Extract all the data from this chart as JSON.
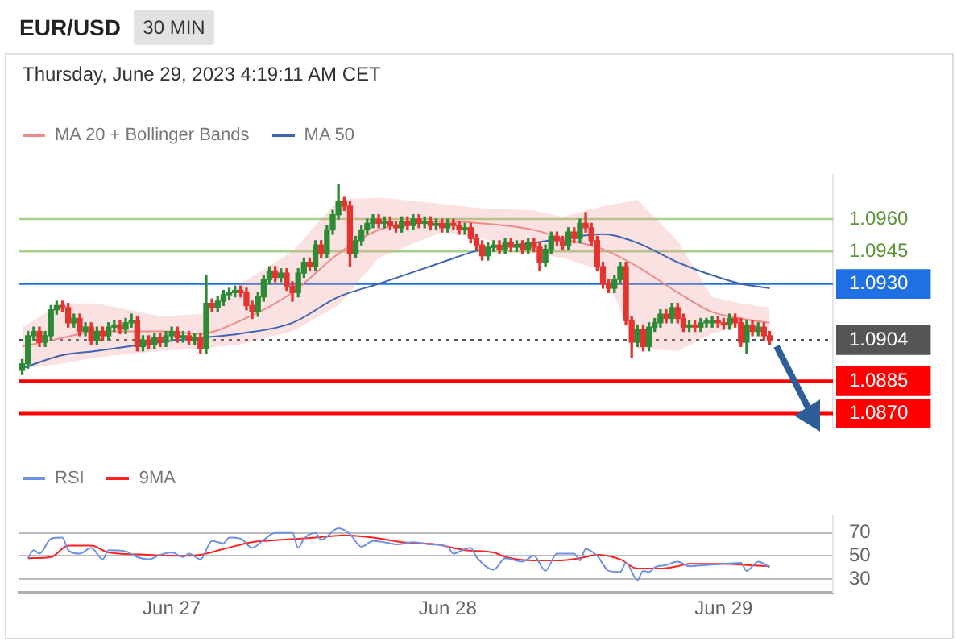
{
  "chart_data": [
    {
      "type": "candlestick",
      "title": "EUR/USD",
      "subtitle": "Thursday, June 29, 2023 4:19:11 AM CET",
      "annotations": [
        "30 MIN"
      ],
      "x": [
        "2023-06-26T11:00",
        "2023-06-26T11:30",
        "2023-06-26T12:00",
        "2023-06-26T12:30",
        "2023-06-26T13:00",
        "2023-06-26T13:30",
        "2023-06-26T14:00",
        "2023-06-26T14:30",
        "2023-06-26T15:00",
        "2023-06-26T15:30",
        "2023-06-26T16:00",
        "2023-06-26T16:30",
        "2023-06-26T17:00",
        "2023-06-26T17:30",
        "2023-06-26T18:00",
        "2023-06-26T18:30",
        "2023-06-26T19:00",
        "2023-06-26T19:30",
        "2023-06-26T20:00",
        "2023-06-26T20:30",
        "2023-06-26T21:00",
        "2023-06-26T21:30",
        "2023-06-26T22:00",
        "2023-06-26T22:30",
        "2023-06-26T23:00",
        "2023-06-26T23:30",
        "2023-06-27T00:00",
        "2023-06-27T00:30",
        "2023-06-27T01:00",
        "2023-06-27T01:30",
        "2023-06-27T02:00",
        "2023-06-27T02:30",
        "2023-06-27T03:00",
        "2023-06-27T03:30",
        "2023-06-27T04:00",
        "2023-06-27T04:30",
        "2023-06-27T05:00",
        "2023-06-27T05:30",
        "2023-06-27T06:00",
        "2023-06-27T06:30",
        "2023-06-27T07:00",
        "2023-06-27T07:30",
        "2023-06-27T08:00",
        "2023-06-27T08:30",
        "2023-06-27T09:00",
        "2023-06-27T09:30",
        "2023-06-27T10:00",
        "2023-06-27T10:30",
        "2023-06-27T11:00",
        "2023-06-27T11:30",
        "2023-06-27T12:00",
        "2023-06-27T12:30",
        "2023-06-27T13:00",
        "2023-06-27T13:30",
        "2023-06-27T14:00",
        "2023-06-27T14:30",
        "2023-06-27T15:00",
        "2023-06-27T15:30",
        "2023-06-27T16:00",
        "2023-06-27T16:30",
        "2023-06-27T17:00",
        "2023-06-27T17:30",
        "2023-06-27T18:00",
        "2023-06-27T18:30",
        "2023-06-27T19:00",
        "2023-06-27T19:30",
        "2023-06-27T20:00",
        "2023-06-27T20:30",
        "2023-06-27T21:00",
        "2023-06-27T21:30",
        "2023-06-27T22:00",
        "2023-06-27T22:30",
        "2023-06-27T23:00",
        "2023-06-27T23:30",
        "2023-06-28T00:00",
        "2023-06-28T00:30",
        "2023-06-28T01:00",
        "2023-06-28T01:30",
        "2023-06-28T02:00",
        "2023-06-28T02:30",
        "2023-06-28T03:00",
        "2023-06-28T03:30",
        "2023-06-28T04:00",
        "2023-06-28T04:30",
        "2023-06-28T05:00",
        "2023-06-28T05:30",
        "2023-06-28T06:00",
        "2023-06-28T06:30",
        "2023-06-28T07:00",
        "2023-06-28T07:30",
        "2023-06-28T08:00",
        "2023-06-28T08:30",
        "2023-06-28T09:00",
        "2023-06-28T09:30",
        "2023-06-28T10:00",
        "2023-06-28T10:30",
        "2023-06-28T11:00",
        "2023-06-28T11:30",
        "2023-06-28T12:00",
        "2023-06-28T12:30",
        "2023-06-28T13:00",
        "2023-06-28T13:30",
        "2023-06-28T14:00",
        "2023-06-28T14:30",
        "2023-06-28T15:00",
        "2023-06-28T15:30",
        "2023-06-28T16:00",
        "2023-06-28T16:30",
        "2023-06-28T17:00",
        "2023-06-28T17:30",
        "2023-06-28T18:00",
        "2023-06-28T18:30",
        "2023-06-28T19:00",
        "2023-06-28T19:30",
        "2023-06-28T20:00",
        "2023-06-28T20:30",
        "2023-06-28T21:00",
        "2023-06-28T21:30",
        "2023-06-28T22:00",
        "2023-06-28T22:30",
        "2023-06-28T23:00",
        "2023-06-28T23:30",
        "2023-06-29T00:00",
        "2023-06-29T00:30",
        "2023-06-29T01:00",
        "2023-06-29T01:30",
        "2023-06-29T02:00",
        "2023-06-29T02:30",
        "2023-06-29T03:00",
        "2023-06-29T03:30",
        "2023-06-29T04:00"
      ],
      "ohlc": [
        [
          1.089,
          1.0895,
          1.0888,
          1.0893
        ],
        [
          1.0893,
          1.0908,
          1.0891,
          1.0906
        ],
        [
          1.0906,
          1.091,
          1.0904,
          1.0908
        ],
        [
          1.0908,
          1.091,
          1.0901,
          1.0903
        ],
        [
          1.0903,
          1.0908,
          1.0901,
          1.0906
        ],
        [
          1.0906,
          1.092,
          1.0904,
          1.0918
        ],
        [
          1.0918,
          1.0922,
          1.0916,
          1.092
        ],
        [
          1.092,
          1.0922,
          1.0917,
          1.0919
        ],
        [
          1.0919,
          1.0921,
          1.091,
          1.0912
        ],
        [
          1.0912,
          1.0916,
          1.091,
          1.0914
        ],
        [
          1.0914,
          1.0916,
          1.0906,
          1.0908
        ],
        [
          1.0908,
          1.0912,
          1.0906,
          1.091
        ],
        [
          1.091,
          1.0912,
          1.0902,
          1.0904
        ],
        [
          1.0904,
          1.091,
          1.0902,
          1.0908
        ],
        [
          1.0908,
          1.091,
          1.0904,
          1.0906
        ],
        [
          1.0906,
          1.0912,
          1.0904,
          1.091
        ],
        [
          1.091,
          1.0913,
          1.0908,
          1.0911
        ],
        [
          1.0911,
          1.0913,
          1.0907,
          1.0909
        ],
        [
          1.0909,
          1.0914,
          1.0907,
          1.0912
        ],
        [
          1.0912,
          1.0916,
          1.091,
          1.0913
        ],
        [
          1.0913,
          1.0915,
          1.0899,
          1.0901
        ],
        [
          1.0901,
          1.0906,
          1.0899,
          1.0904
        ],
        [
          1.0904,
          1.0906,
          1.09,
          1.0902
        ],
        [
          1.0902,
          1.0907,
          1.09,
          1.0905
        ],
        [
          1.0905,
          1.0907,
          1.0901,
          1.0903
        ],
        [
          1.0903,
          1.0908,
          1.0901,
          1.0906
        ],
        [
          1.0906,
          1.091,
          1.0904,
          1.0908
        ],
        [
          1.0908,
          1.091,
          1.0903,
          1.0905
        ],
        [
          1.0905,
          1.0908,
          1.0903,
          1.0906
        ],
        [
          1.0906,
          1.0908,
          1.0902,
          1.0904
        ],
        [
          1.0904,
          1.0907,
          1.0902,
          1.0905
        ],
        [
          1.0905,
          1.0907,
          1.0898,
          1.09
        ],
        [
          1.09,
          1.0934,
          1.0898,
          1.0921
        ],
        [
          1.0921,
          1.0923,
          1.0917,
          1.0919
        ],
        [
          1.0919,
          1.0924,
          1.0917,
          1.0922
        ],
        [
          1.0922,
          1.0927,
          1.092,
          1.0925
        ],
        [
          1.0925,
          1.0928,
          1.0923,
          1.0926
        ],
        [
          1.0926,
          1.0929,
          1.0924,
          1.0927
        ],
        [
          1.0927,
          1.0929,
          1.0924,
          1.0926
        ],
        [
          1.0926,
          1.0928,
          1.0918,
          1.092
        ],
        [
          1.092,
          1.0922,
          1.0914,
          1.0917
        ],
        [
          1.0917,
          1.0926,
          1.0915,
          1.0924
        ],
        [
          1.0924,
          1.0934,
          1.0922,
          1.0932
        ],
        [
          1.0932,
          1.0938,
          1.093,
          1.0936
        ],
        [
          1.0936,
          1.0938,
          1.0931,
          1.0933
        ],
        [
          1.0933,
          1.0937,
          1.0931,
          1.0935
        ],
        [
          1.0935,
          1.0937,
          1.0927,
          1.0929
        ],
        [
          1.0929,
          1.0931,
          1.0922,
          1.0926
        ],
        [
          1.0926,
          1.0937,
          1.0924,
          1.0935
        ],
        [
          1.0935,
          1.0942,
          1.0933,
          1.094
        ],
        [
          1.094,
          1.0942,
          1.0936,
          1.0938
        ],
        [
          1.0938,
          1.095,
          1.0936,
          1.0948
        ],
        [
          1.0948,
          1.095,
          1.0942,
          1.0944
        ],
        [
          1.0944,
          1.0957,
          1.0942,
          1.0955
        ],
        [
          1.0955,
          1.0964,
          1.0953,
          1.0962
        ],
        [
          1.0962,
          1.0976,
          1.096,
          1.0968
        ],
        [
          1.0968,
          1.097,
          1.0964,
          1.0966
        ],
        [
          1.0966,
          1.0968,
          1.0938,
          1.0944
        ],
        [
          1.0944,
          1.0952,
          1.0942,
          1.095
        ],
        [
          1.095,
          1.0957,
          1.0948,
          1.0955
        ],
        [
          1.0955,
          1.096,
          1.0953,
          1.0958
        ],
        [
          1.0958,
          1.0962,
          1.0956,
          1.096
        ],
        [
          1.096,
          1.0962,
          1.0956,
          1.0958
        ],
        [
          1.0958,
          1.0961,
          1.0956,
          1.0959
        ],
        [
          1.0959,
          1.0961,
          1.0955,
          1.0957
        ],
        [
          1.0957,
          1.0959,
          1.0954,
          1.0956
        ],
        [
          1.0956,
          1.0961,
          1.0954,
          1.0959
        ],
        [
          1.0959,
          1.0961,
          1.0955,
          1.0957
        ],
        [
          1.0957,
          1.0962,
          1.0955,
          1.096
        ],
        [
          1.096,
          1.0962,
          1.0956,
          1.0958
        ],
        [
          1.0958,
          1.0961,
          1.0956,
          1.0959
        ],
        [
          1.0959,
          1.0961,
          1.0955,
          1.0957
        ],
        [
          1.0957,
          1.096,
          1.0955,
          1.0958
        ],
        [
          1.0958,
          1.096,
          1.0954,
          1.0956
        ],
        [
          1.0956,
          1.096,
          1.0954,
          1.0958
        ],
        [
          1.0958,
          1.096,
          1.0955,
          1.0957
        ],
        [
          1.0957,
          1.0959,
          1.0953,
          1.0955
        ],
        [
          1.0955,
          1.0958,
          1.0953,
          1.0956
        ],
        [
          1.0956,
          1.0958,
          1.0949,
          1.0951
        ],
        [
          1.0951,
          1.0953,
          1.0946,
          1.0948
        ],
        [
          1.0948,
          1.095,
          1.0941,
          1.0943
        ],
        [
          1.0943,
          1.0949,
          1.0941,
          1.0947
        ],
        [
          1.0947,
          1.095,
          1.0945,
          1.0948
        ],
        [
          1.0948,
          1.095,
          1.0944,
          1.0946
        ],
        [
          1.0946,
          1.0951,
          1.0944,
          1.0949
        ],
        [
          1.0949,
          1.0951,
          1.0945,
          1.0947
        ],
        [
          1.0947,
          1.095,
          1.0945,
          1.0948
        ],
        [
          1.0948,
          1.095,
          1.0944,
          1.0946
        ],
        [
          1.0946,
          1.0951,
          1.0944,
          1.0949
        ],
        [
          1.0949,
          1.0951,
          1.0945,
          1.0947
        ],
        [
          1.0947,
          1.0949,
          1.0936,
          1.094
        ],
        [
          1.094,
          1.0948,
          1.0938,
          1.0946
        ],
        [
          1.0946,
          1.0954,
          1.0944,
          1.0952
        ],
        [
          1.0952,
          1.0954,
          1.0948,
          1.095
        ],
        [
          1.095,
          1.0952,
          1.0946,
          1.0948
        ],
        [
          1.0948,
          1.0956,
          1.0946,
          1.0954
        ],
        [
          1.0954,
          1.0956,
          1.0949,
          1.0951
        ],
        [
          1.0951,
          1.096,
          1.0949,
          1.0958
        ],
        [
          1.0958,
          1.0963,
          1.0954,
          1.0956
        ],
        [
          1.0956,
          1.0958,
          1.0948,
          1.095
        ],
        [
          1.095,
          1.0952,
          1.0936,
          1.0938
        ],
        [
          1.0938,
          1.094,
          1.0928,
          1.093
        ],
        [
          1.093,
          1.0932,
          1.0926,
          1.0928
        ],
        [
          1.0928,
          1.0934,
          1.0926,
          1.0932
        ],
        [
          1.0932,
          1.094,
          1.093,
          1.0938
        ],
        [
          1.0938,
          1.094,
          1.0911,
          1.0913
        ],
        [
          1.0913,
          1.0915,
          1.0896,
          1.0903
        ],
        [
          1.0903,
          1.0911,
          1.0901,
          1.0909
        ],
        [
          1.0909,
          1.0911,
          1.0899,
          1.0901
        ],
        [
          1.0901,
          1.0912,
          1.0899,
          1.091
        ],
        [
          1.091,
          1.0914,
          1.0908,
          1.0912
        ],
        [
          1.0912,
          1.0918,
          1.091,
          1.0916
        ],
        [
          1.0916,
          1.0918,
          1.0912,
          1.0914
        ],
        [
          1.0914,
          1.0921,
          1.0912,
          1.0919
        ],
        [
          1.0919,
          1.0921,
          1.0912,
          1.0914
        ],
        [
          1.0914,
          1.0916,
          1.0908,
          1.091
        ],
        [
          1.091,
          1.0913,
          1.0908,
          1.0911
        ],
        [
          1.0911,
          1.0913,
          1.0908,
          1.091
        ],
        [
          1.091,
          1.0914,
          1.0908,
          1.0912
        ],
        [
          1.0912,
          1.0914,
          1.091,
          1.0912
        ],
        [
          1.0912,
          1.0915,
          1.091,
          1.0913
        ],
        [
          1.0913,
          1.0915,
          1.091,
          1.0912
        ],
        [
          1.0912,
          1.0914,
          1.0909,
          1.0911
        ],
        [
          1.0911,
          1.0916,
          1.0909,
          1.0914
        ],
        [
          1.0914,
          1.0916,
          1.091,
          1.0912
        ],
        [
          1.0912,
          1.0914,
          1.0901,
          1.0903
        ],
        [
          1.0903,
          1.0913,
          1.0898,
          1.0911
        ],
        [
          1.0911,
          1.0913,
          1.0906,
          1.0908
        ],
        [
          1.0908,
          1.0912,
          1.0906,
          1.091
        ],
        [
          1.091,
          1.0912,
          1.0904,
          1.0906
        ],
        [
          1.0906,
          1.0908,
          1.0902,
          1.0904
        ]
      ],
      "series": [
        {
          "type": "line",
          "name": "MA 20 + Bollinger Bands",
          "color": "#f08a8a",
          "x": [
            "2023-06-26T11:00",
            "2023-06-26T14:30",
            "2023-06-26T17:30",
            "2023-06-26T23:00",
            "2023-06-27T02:30",
            "2023-06-27T06:00",
            "2023-06-27T10:30",
            "2023-06-27T14:30",
            "2023-06-27T18:00",
            "2023-06-27T23:30",
            "2023-06-28T03:00",
            "2023-06-28T07:30",
            "2023-06-28T10:00",
            "2023-06-28T13:30",
            "2023-06-28T16:30",
            "2023-06-28T20:00",
            "2023-06-28T23:00",
            "2023-06-29T01:30",
            "2023-06-29T04:00"
          ],
          "values": [
            1.0901,
            1.0905,
            1.0908,
            1.0908,
            1.0907,
            1.0913,
            1.0926,
            1.0944,
            1.0955,
            1.0959,
            1.0958,
            1.0955,
            1.0951,
            1.0946,
            1.0938,
            1.0926,
            1.0917,
            1.0914,
            1.0912
          ],
          "lower": [
            1.0891,
            1.0893,
            1.0896,
            1.0899,
            1.09,
            1.0902,
            1.0908,
            1.092,
            1.0942,
            1.0954,
            1.0951,
            1.0944,
            1.0942,
            1.0936,
            1.09,
            1.0899,
            1.0907,
            1.0911,
            1.091
          ],
          "upper": [
            1.091,
            1.0921,
            1.0921,
            1.0915,
            1.0916,
            1.093,
            1.0945,
            1.0969,
            1.097,
            1.0967,
            1.0965,
            1.0964,
            1.0961,
            1.0966,
            1.0969,
            1.095,
            1.0924,
            1.0921,
            1.0919
          ]
        },
        {
          "type": "line",
          "name": "MA 50",
          "color": "#3f64b0",
          "x": [
            "2023-06-26T11:00",
            "2023-06-26T14:30",
            "2023-06-26T17:30",
            "2023-06-26T23:00",
            "2023-06-27T02:30",
            "2023-06-27T06:00",
            "2023-06-27T10:30",
            "2023-06-27T14:30",
            "2023-06-27T18:00",
            "2023-06-27T23:30",
            "2023-06-28T03:00",
            "2023-06-28T07:30",
            "2023-06-28T10:00",
            "2023-06-28T13:30",
            "2023-06-28T16:30",
            "2023-06-28T20:00",
            "2023-06-28T23:00",
            "2023-06-29T01:30",
            "2023-06-29T04:00"
          ],
          "values": [
            1.0891,
            1.0897,
            1.0899,
            1.0903,
            1.0905,
            1.0907,
            1.0912,
            1.0924,
            1.093,
            1.094,
            1.0946,
            1.0949,
            1.0951,
            1.0953,
            1.0949,
            1.094,
            1.0934,
            1.093,
            1.0928
          ]
        }
      ],
      "ref_lines": [
        {
          "axis": "y",
          "value": 1.096,
          "color": "#a8d08d"
        },
        {
          "axis": "y",
          "value": 1.0945,
          "color": "#a8d08d"
        },
        {
          "axis": "y",
          "value": 1.093,
          "color": "#1f6fe5"
        },
        {
          "axis": "y",
          "value": 1.0904,
          "color": "#555555",
          "line_style": "dotted"
        },
        {
          "axis": "y",
          "value": 1.0885,
          "color": "#ff0000"
        },
        {
          "axis": "y",
          "value": 1.087,
          "color": "#ff0000"
        }
      ],
      "yticks": [
        {
          "value": 1.087,
          "label": "1.0870"
        },
        {
          "value": 1.0885,
          "label": "1.0885"
        },
        {
          "value": 1.0904,
          "label": "1.0904"
        },
        {
          "value": 1.093,
          "label": "1.0930"
        },
        {
          "value": 1.0945,
          "label": "1.0945"
        },
        {
          "value": 1.096,
          "label": "1.0960"
        }
      ],
      "xlim": [
        "2023-06-26T10:45",
        "2023-06-29T09:30"
      ],
      "ylim": [
        1.0864,
        1.098
      ],
      "legend": "top left",
      "tick_labels": "y"
    },
    {
      "type": "line",
      "series": [
        {
          "name": "RSI",
          "color": "#7090e0",
          "x": [
            "2023-06-26T11:30",
            "2023-06-26T12:00",
            "2023-06-26T12:30",
            "2023-06-26T13:30",
            "2023-06-26T14:30",
            "2023-06-26T15:00",
            "2023-06-26T16:00",
            "2023-06-26T17:00",
            "2023-06-26T18:00",
            "2023-06-26T18:30",
            "2023-06-26T20:00",
            "2023-06-26T21:00",
            "2023-06-26T22:00",
            "2023-06-26T23:00",
            "2023-06-27T00:00",
            "2023-06-27T01:00",
            "2023-06-27T01:30",
            "2023-06-27T02:30",
            "2023-06-27T03:30",
            "2023-06-27T04:30",
            "2023-06-27T05:00",
            "2023-06-27T06:00",
            "2023-06-27T07:00",
            "2023-06-27T08:00",
            "2023-06-27T09:00",
            "2023-06-27T10:30",
            "2023-06-27T11:00",
            "2023-06-27T11:30",
            "2023-06-27T12:30",
            "2023-06-27T13:00",
            "2023-06-27T14:30",
            "2023-06-27T15:30",
            "2023-06-27T16:30",
            "2023-06-27T17:30",
            "2023-06-27T19:00",
            "2023-06-27T19:30",
            "2023-06-27T21:00",
            "2023-06-27T22:30",
            "2023-06-28T00:00",
            "2023-06-28T00:30",
            "2023-06-28T01:30",
            "2023-06-28T02:00",
            "2023-06-28T02:30",
            "2023-06-28T04:00",
            "2023-06-28T05:00",
            "2023-06-28T06:30",
            "2023-06-28T07:30",
            "2023-06-28T08:30",
            "2023-06-28T09:30",
            "2023-06-28T11:00",
            "2023-06-28T11:30",
            "2023-06-28T12:00",
            "2023-06-28T13:00",
            "2023-06-28T14:00",
            "2023-06-28T15:00",
            "2023-06-28T15:30",
            "2023-06-28T16:30",
            "2023-06-28T17:00",
            "2023-06-28T17:30",
            "2023-06-28T18:00",
            "2023-06-28T19:00",
            "2023-06-28T20:00",
            "2023-06-28T21:00",
            "2023-06-28T22:30",
            "2023-06-29T00:00",
            "2023-06-29T01:30",
            "2023-06-29T02:00",
            "2023-06-29T03:00",
            "2023-06-29T04:00"
          ],
          "values": [
            48,
            55,
            52,
            65,
            66,
            55,
            52,
            57,
            47,
            55,
            54,
            49,
            47,
            51,
            53,
            49,
            52,
            47,
            63,
            61,
            66,
            65,
            57,
            64,
            70,
            70,
            57,
            65,
            70,
            64,
            74,
            69,
            58,
            63,
            61,
            60,
            62,
            60,
            58,
            52,
            56,
            57,
            49,
            38,
            48,
            45,
            50,
            37,
            52,
            52,
            46,
            56,
            50,
            37,
            36,
            44,
            29,
            37,
            36,
            40,
            42,
            45,
            41,
            42,
            43,
            44,
            37,
            45,
            40
          ]
        },
        {
          "name": "9MA",
          "color": "#ff2020",
          "x": [
            "2023-06-26T11:30",
            "2023-06-26T13:30",
            "2023-06-26T15:00",
            "2023-06-26T17:00",
            "2023-06-26T18:30",
            "2023-06-26T22:00",
            "2023-06-27T00:30",
            "2023-06-27T02:30",
            "2023-06-27T04:30",
            "2023-06-27T07:00",
            "2023-06-27T09:30",
            "2023-06-27T12:30",
            "2023-06-27T15:00",
            "2023-06-27T17:30",
            "2023-06-27T20:00",
            "2023-06-27T23:00",
            "2023-06-28T01:30",
            "2023-06-28T04:00",
            "2023-06-28T05:00",
            "2023-06-28T07:30",
            "2023-06-28T09:30",
            "2023-06-28T11:30",
            "2023-06-28T13:00",
            "2023-06-28T15:00",
            "2023-06-28T16:30",
            "2023-06-28T18:30",
            "2023-06-28T20:00",
            "2023-06-28T21:00",
            "2023-06-29T00:00",
            "2023-06-29T02:00",
            "2023-06-29T04:00"
          ],
          "values": [
            48,
            49,
            59,
            59,
            53,
            51,
            50,
            51,
            56,
            62,
            64,
            66,
            68,
            66,
            62,
            60,
            55,
            53,
            49,
            46,
            46,
            48,
            51,
            47,
            39,
            39,
            41,
            43,
            43,
            42,
            41
          ]
        }
      ],
      "xlim": [
        "2023-06-26T10:45",
        "2023-06-29T09:30"
      ],
      "xticks": [
        {
          "value": "2023-06-27",
          "label": "Jun 27"
        },
        {
          "value": "2023-06-28",
          "label": "Jun 28"
        },
        {
          "value": "2023-06-29",
          "label": "Jun 29"
        }
      ],
      "ylim": [
        18,
        85
      ],
      "yticks": [
        30,
        50,
        70
      ],
      "grid": "y",
      "legend": "top left"
    }
  ]
}
